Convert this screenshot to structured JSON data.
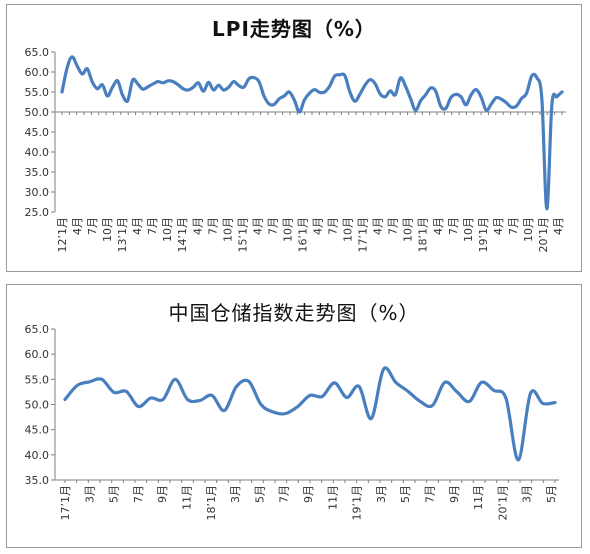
{
  "charts": [
    {
      "title": "LPI走势图（%）",
      "chart_data": {
        "type": "line",
        "title": "LPI走势图（%）",
        "ylim": [
          25.0,
          65.0
        ],
        "yticks": [
          "65.0",
          "60.0",
          "55.0",
          "50.0",
          "45.0",
          "40.0",
          "35.0",
          "30.0",
          "25.0"
        ],
        "reference_line": 50.0,
        "color": "#4a7fbf",
        "grid": false,
        "x_labels": [
          "12’1月",
          "4月",
          "7月",
          "10月",
          "13’1月",
          "4月",
          "7月",
          "10月",
          "14’1月",
          "4月",
          "7月",
          "10月",
          "15’1月",
          "4月",
          "7月",
          "10月",
          "16’1月",
          "4月",
          "7月",
          "10月",
          "17’1月",
          "4月",
          "7月",
          "10月",
          "18’1月",
          "4月",
          "7月",
          "10月",
          "19’1月",
          "4月",
          "7月",
          "10月",
          "20’1月",
          "4月"
        ],
        "series": [
          {
            "values": [
              55,
              61,
              63.8,
              61.5,
              59.5,
              60.8,
              57.5,
              55.8,
              56.8,
              54,
              56.2,
              57.8,
              54.2,
              52.8,
              58,
              57,
              55.7,
              56.3,
              57,
              57.6,
              57.3,
              57.8,
              57.6,
              56.8,
              55.8,
              55.5,
              56.2,
              57.3,
              55.2,
              57.4,
              55.5,
              56.7,
              55.5,
              56.2,
              57.6,
              56.6,
              56.2,
              58.3,
              58.6,
              57.6,
              54,
              52,
              51.9,
              53.3,
              54,
              55,
              53,
              50,
              53,
              54.7,
              55.6,
              54.9,
              55,
              56.5,
              59,
              59.3,
              59.1,
              55,
              52.7,
              54.5,
              56.7,
              58.1,
              57.1,
              54.5,
              53.8,
              55.3,
              54.3,
              58.5,
              56.5,
              53.4,
              50.4,
              52.8,
              54.3,
              56,
              55.2,
              51.4,
              50.9,
              53.6,
              54.4,
              53.8,
              51.8,
              54.3,
              55.6,
              53.7,
              50.4,
              52,
              53.6,
              53.2,
              52.3,
              51.2,
              51.5,
              53.4,
              54.7,
              59,
              58.6,
              53.5,
              25.8,
              51.9,
              53.8,
              55
            ]
          }
        ]
      }
    },
    {
      "title": "中国仓储指数走势图（%）",
      "chart_data": {
        "type": "line",
        "title": "中国仓储指数走势图（%）",
        "ylim": [
          35.0,
          65.0
        ],
        "yticks": [
          "65.0",
          "60.0",
          "55.0",
          "50.0",
          "45.0",
          "40.0",
          "35.0"
        ],
        "color": "#4a7fbf",
        "grid": false,
        "x_labels": [
          "17’1月",
          "3月",
          "5月",
          "7月",
          "9月",
          "11月",
          "18’1月",
          "3月",
          "5月",
          "7月",
          "9月",
          "11月",
          "19’1月",
          "3月",
          "5月",
          "7月",
          "9月",
          "11月",
          "20’1月",
          "3月",
          "5月"
        ],
        "series": [
          {
            "values": [
              51,
              53.8,
              54.5,
              55,
              52.4,
              52.6,
              49.6,
              51.3,
              51,
              55,
              51,
              50.8,
              51.8,
              48.8,
              53.6,
              54.6,
              50,
              48.5,
              48.2,
              49.6,
              51.8,
              51.6,
              54.3,
              51.4,
              53.6,
              47.2,
              57,
              54.4,
              52.6,
              50.6,
              49.8,
              54.4,
              52.5,
              50.6,
              54.4,
              52.8,
              51.2,
              39,
              52.2,
              50.2,
              50.4
            ]
          }
        ]
      }
    }
  ]
}
